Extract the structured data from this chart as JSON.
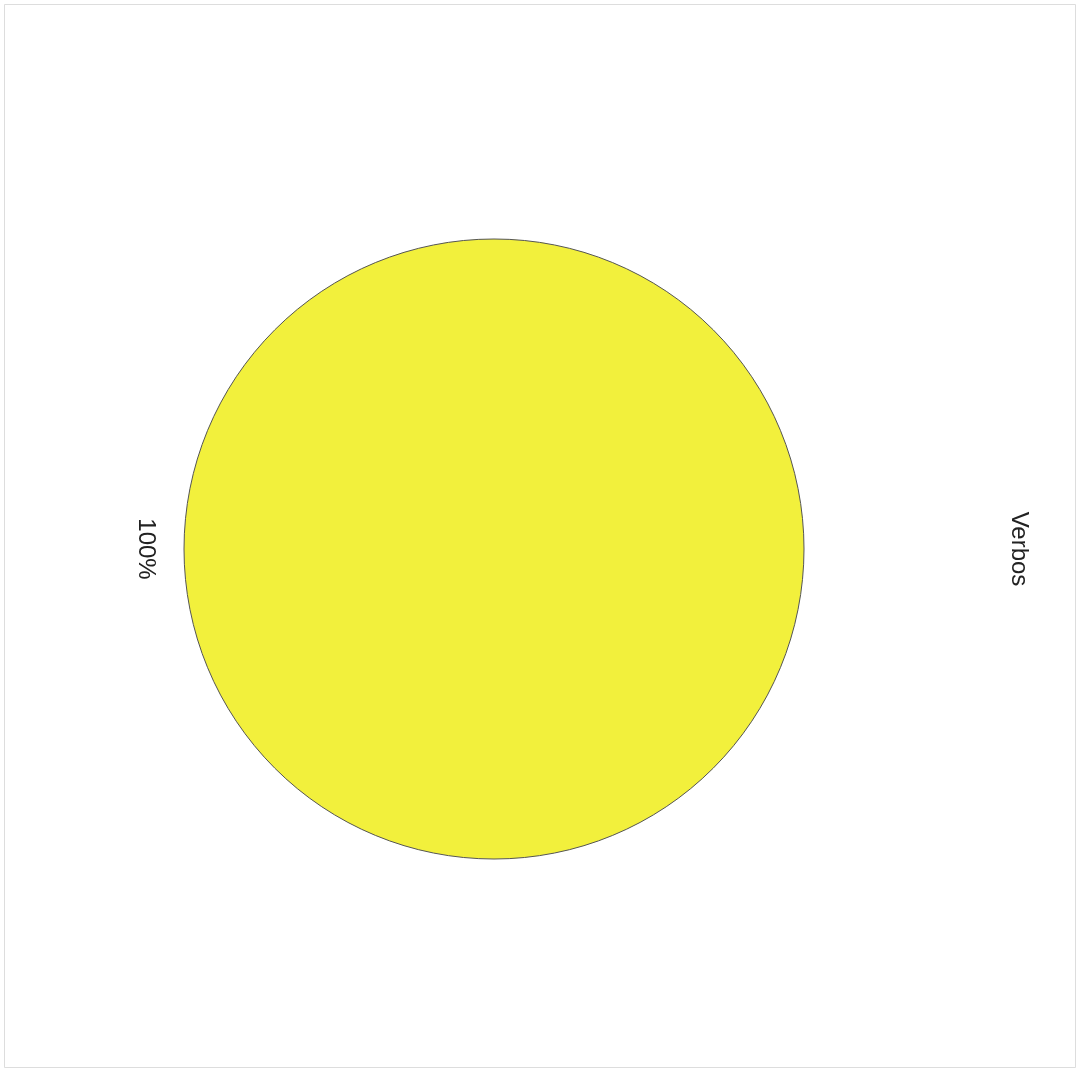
{
  "chart_data": {
    "type": "pie",
    "categories": [
      "Verbos"
    ],
    "values": [
      100
    ],
    "colors": [
      "#f2f03c"
    ],
    "value_labels": [
      "100%"
    ]
  }
}
